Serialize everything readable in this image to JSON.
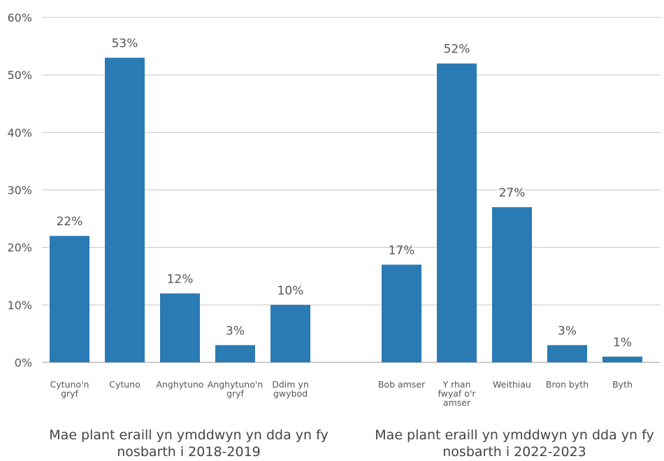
{
  "chart_data": {
    "type": "bar",
    "y_axis": {
      "ticks": [
        "0%",
        "10%",
        "20%",
        "30%",
        "40%",
        "50%",
        "60%"
      ],
      "range": [
        0,
        60
      ]
    },
    "grid": true,
    "groups": [
      {
        "title": "Mae plant eraill yn ymddwyn yn dda yn fy nosbarth i 2018-2019",
        "categories": [
          "Cytuno'n gryf",
          "Cytuno",
          "Anghytuno",
          "Anghytuno'n gryf",
          "Ddim yn gwybod"
        ],
        "values": [
          22,
          53,
          12,
          3,
          10
        ],
        "labels": [
          "22%",
          "53%",
          "12%",
          "3%",
          "10%"
        ]
      },
      {
        "title": "Mae plant eraill yn ymddwyn yn dda yn fy nosbarth i 2022-2023",
        "categories": [
          "Bob amser",
          "Y rhan fwyaf o'r amser",
          "Weithiau",
          "Bron byth",
          "Byth"
        ],
        "values": [
          17,
          52,
          27,
          3,
          1
        ],
        "labels": [
          "17%",
          "52%",
          "27%",
          "3%",
          "1%"
        ]
      }
    ],
    "colors": {
      "bar": "#2a7ab4"
    }
  }
}
